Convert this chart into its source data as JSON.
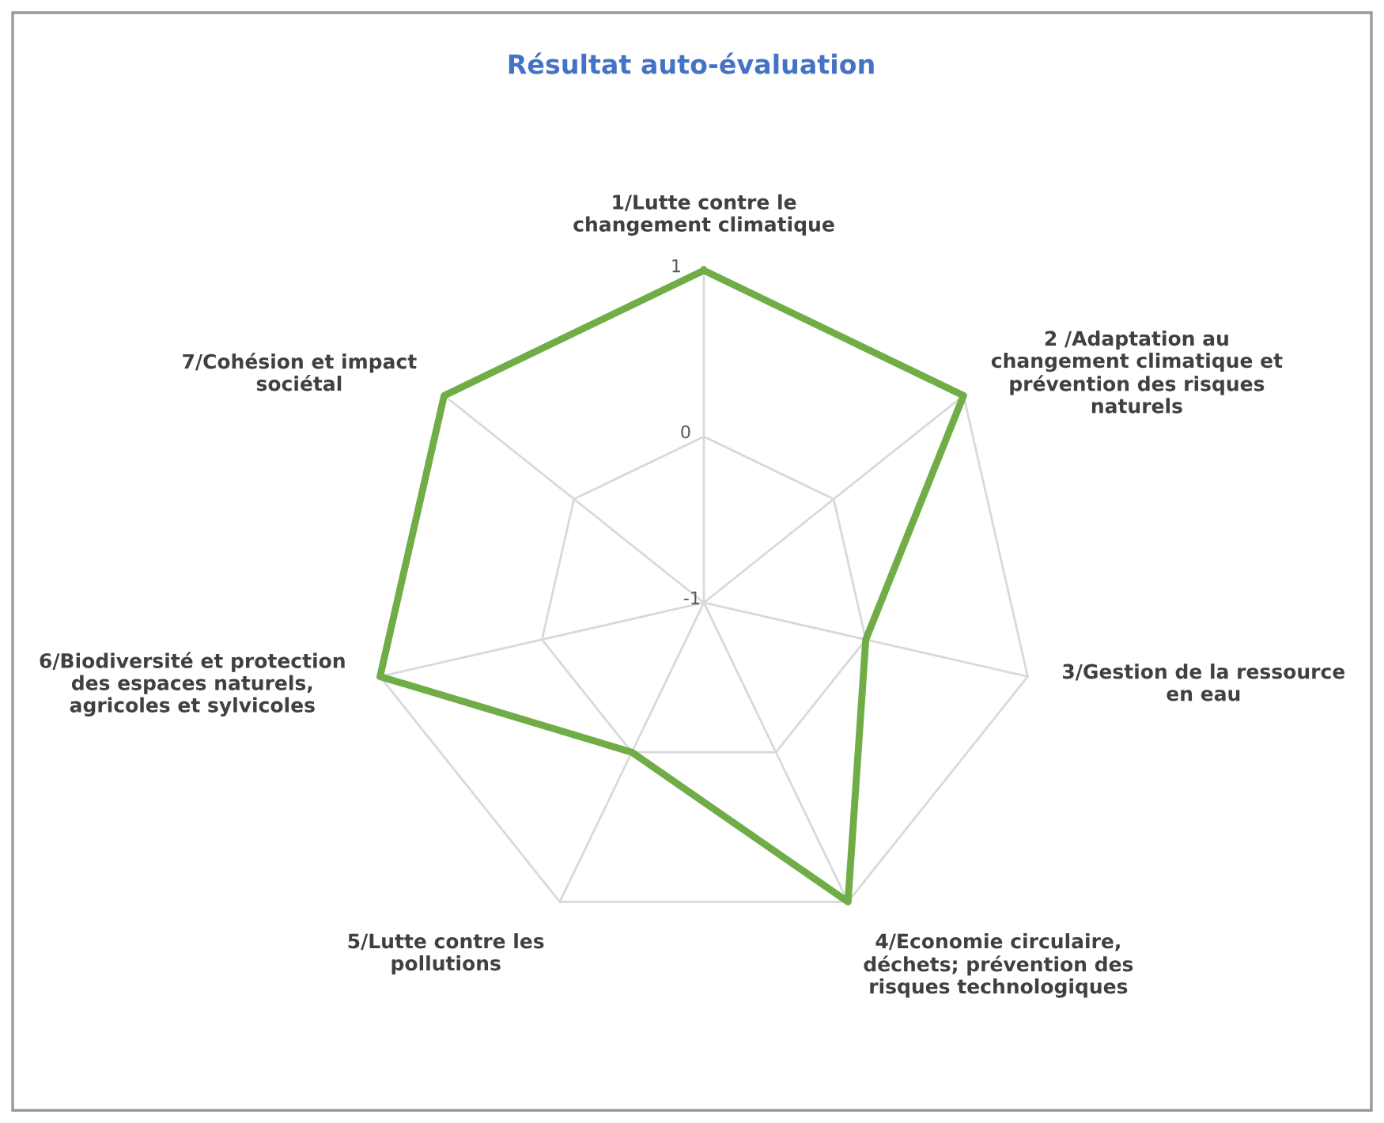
{
  "chart_data": {
    "type": "radar",
    "title": "Résultat auto-évaluation",
    "categories": [
      "1/Lutte contre le\nchangement climatique",
      "2 /Adaptation au\nchangement climatique et\nprévention des risques\nnaturels",
      "3/Gestion de la ressource\nen eau",
      "4/Economie circulaire,\ndéchets; prévention des\nrisques technologiques",
      "5/Lutte contre les\npollutions",
      "6/Biodiversité et protection\ndes espaces naturels,\nagricoles et sylvicoles",
      "7/Cohésion et impact\nsociétal"
    ],
    "series": [
      {
        "color": "#70ad47",
        "values": [
          1,
          1,
          0,
          1,
          0,
          1,
          1
        ]
      }
    ],
    "ylim": [
      -1,
      1
    ],
    "yticks": [
      -1,
      0,
      1
    ],
    "grid": true,
    "marker": "none",
    "line_style": "solid"
  }
}
